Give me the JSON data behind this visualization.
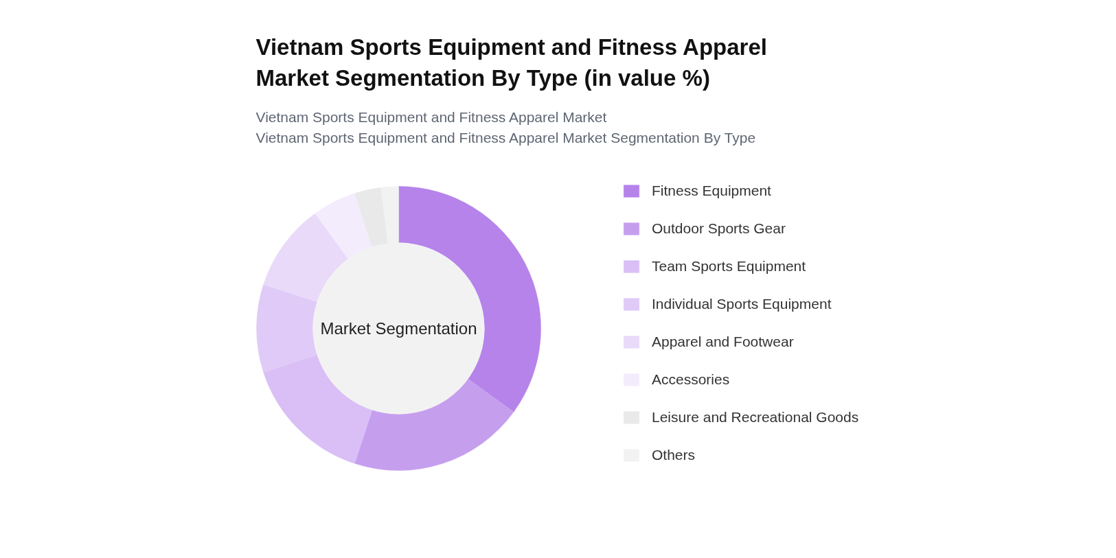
{
  "chart_data": {
    "type": "donut",
    "title": "Vietnam Sports Equipment and Fitness Apparel Market Segmentation By Type (in value %)",
    "subtitle": "Vietnam Sports Equipment and Fitness Apparel Market\nVietnam Sports Equipment and Fitness Apparel Market Segmentation By Type",
    "categories": [
      "Fitness Equipment",
      "Outdoor Sports Gear",
      "Team Sports Equipment",
      "Individual Sports Equipment",
      "Apparel and Footwear",
      "Accessories",
      "Leisure and Recreational Goods",
      "Others"
    ],
    "values": [
      35,
      20,
      15,
      10,
      10,
      5,
      3,
      2
    ],
    "colors": [
      "#b583ea",
      "#c69eee",
      "#d9bff5",
      "#e0caf7",
      "#e9daf9",
      "#f3ecfc",
      "#e9e9e9",
      "#f2f2f2"
    ],
    "annotations": [
      "Market Segmentation"
    ],
    "legend": "right"
  }
}
